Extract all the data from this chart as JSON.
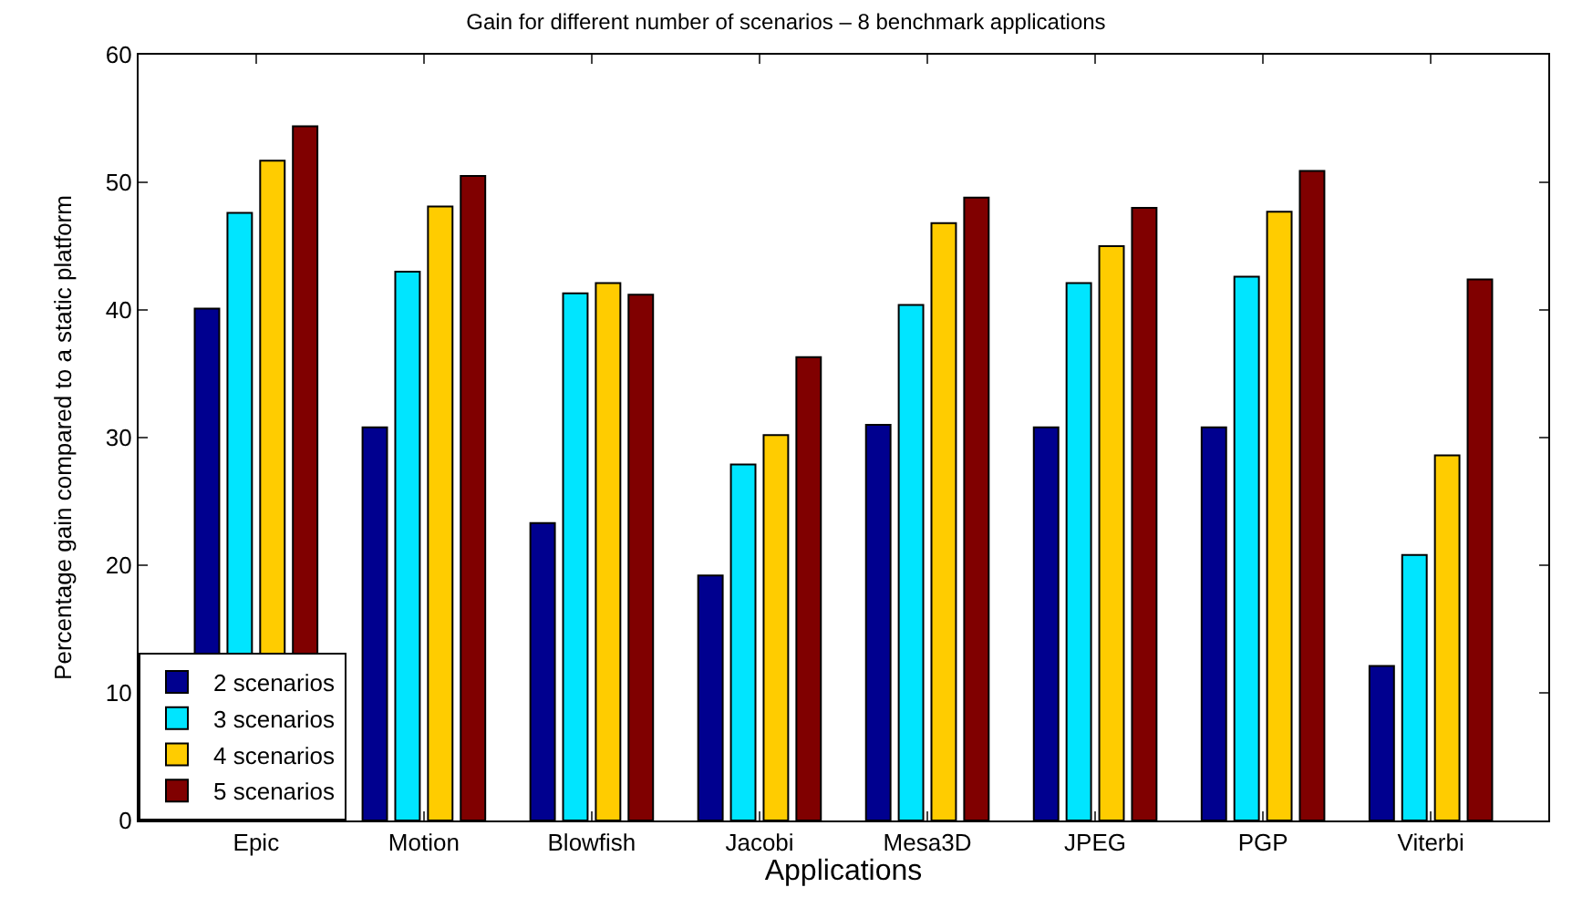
{
  "chart_data": {
    "type": "bar",
    "title": "Gain for different number of scenarios – 8 benchmark applications",
    "xlabel": "Applications",
    "ylabel": "Percentage gain compared to a static platform",
    "categories": [
      "Epic",
      "Motion",
      "Blowfish",
      "Jacobi",
      "Mesa3D",
      "JPEG",
      "PGP",
      "Viterbi"
    ],
    "series": [
      {
        "name": "2 scenarios",
        "color": "#00008f",
        "values": [
          40.1,
          30.8,
          23.3,
          19.2,
          31.0,
          30.8,
          30.8,
          12.1
        ]
      },
      {
        "name": "3 scenarios",
        "color": "#00e5ff",
        "values": [
          47.6,
          43.0,
          41.3,
          27.9,
          40.4,
          42.1,
          42.6,
          20.8
        ]
      },
      {
        "name": "4 scenarios",
        "color": "#ffcc00",
        "values": [
          51.7,
          48.1,
          42.1,
          30.2,
          46.8,
          45.0,
          47.7,
          28.6
        ]
      },
      {
        "name": "5 scenarios",
        "color": "#800000",
        "values": [
          54.4,
          50.5,
          41.2,
          36.3,
          48.8,
          48.0,
          50.9,
          42.4
        ]
      }
    ],
    "ylim": [
      0,
      60
    ],
    "yticks": [
      0,
      10,
      20,
      30,
      40,
      50,
      60
    ],
    "legend": "bottom left"
  }
}
